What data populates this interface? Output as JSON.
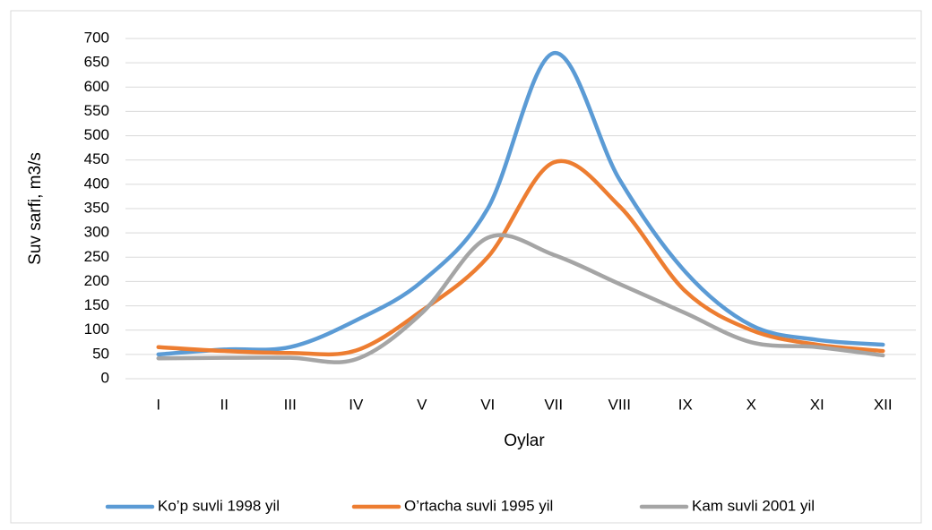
{
  "chart_data": {
    "type": "line",
    "x_label": "Oylar",
    "y_label": "Suv sarfi, m3/s",
    "categories": [
      "I",
      "II",
      "III",
      "IV",
      "V",
      "VI",
      "VII",
      "VIII",
      "IX",
      "X",
      "XI",
      "XII"
    ],
    "series": [
      {
        "name": "Ko’p suvli 1998 yil",
        "color": "#5b9bd5",
        "values": [
          50,
          60,
          65,
          120,
          200,
          350,
          670,
          410,
          220,
          110,
          80,
          70
        ]
      },
      {
        "name": "O’rtacha suvli 1995 yil",
        "color": "#ed7d31",
        "values": [
          65,
          57,
          53,
          58,
          140,
          250,
          445,
          355,
          180,
          100,
          70,
          57
        ]
      },
      {
        "name": "Kam suvli 2001 yil",
        "color": "#a5a5a5",
        "values": [
          42,
          43,
          43,
          40,
          135,
          290,
          255,
          195,
          135,
          75,
          65,
          48
        ]
      }
    ],
    "ylim": [
      0,
      700
    ],
    "yticks": [
      0,
      50,
      100,
      150,
      200,
      250,
      300,
      350,
      400,
      450,
      500,
      550,
      600,
      650,
      700
    ],
    "grid": true,
    "smooth": true,
    "legend": "bottom"
  }
}
